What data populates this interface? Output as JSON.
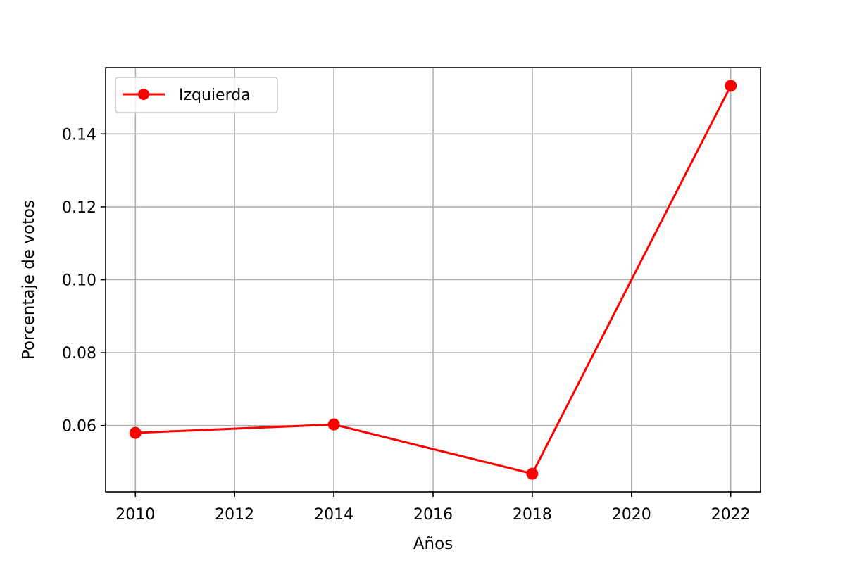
{
  "chart_data": {
    "type": "line",
    "title": "",
    "xlabel": "Años",
    "ylabel": "Porcentaje de votos",
    "x": [
      2010,
      2014,
      2018,
      2022
    ],
    "series": [
      {
        "name": "Izquierda",
        "values": [
          0.058,
          0.0603,
          0.0468,
          0.1532
        ],
        "color": "#ff0000",
        "marker": "circle"
      }
    ],
    "xlim": [
      2009.4,
      2022.6
    ],
    "ylim": [
      0.0418,
      0.1582
    ],
    "xticks": [
      2010,
      2012,
      2014,
      2016,
      2018,
      2020,
      2022
    ],
    "xtick_labels": [
      "2010",
      "2012",
      "2014",
      "2016",
      "2018",
      "2020",
      "2022"
    ],
    "yticks": [
      0.06,
      0.08,
      0.1,
      0.12,
      0.14
    ],
    "ytick_labels": [
      "0.06",
      "0.08",
      "0.10",
      "0.12",
      "0.14"
    ],
    "grid": true,
    "legend_position": "top-left"
  }
}
